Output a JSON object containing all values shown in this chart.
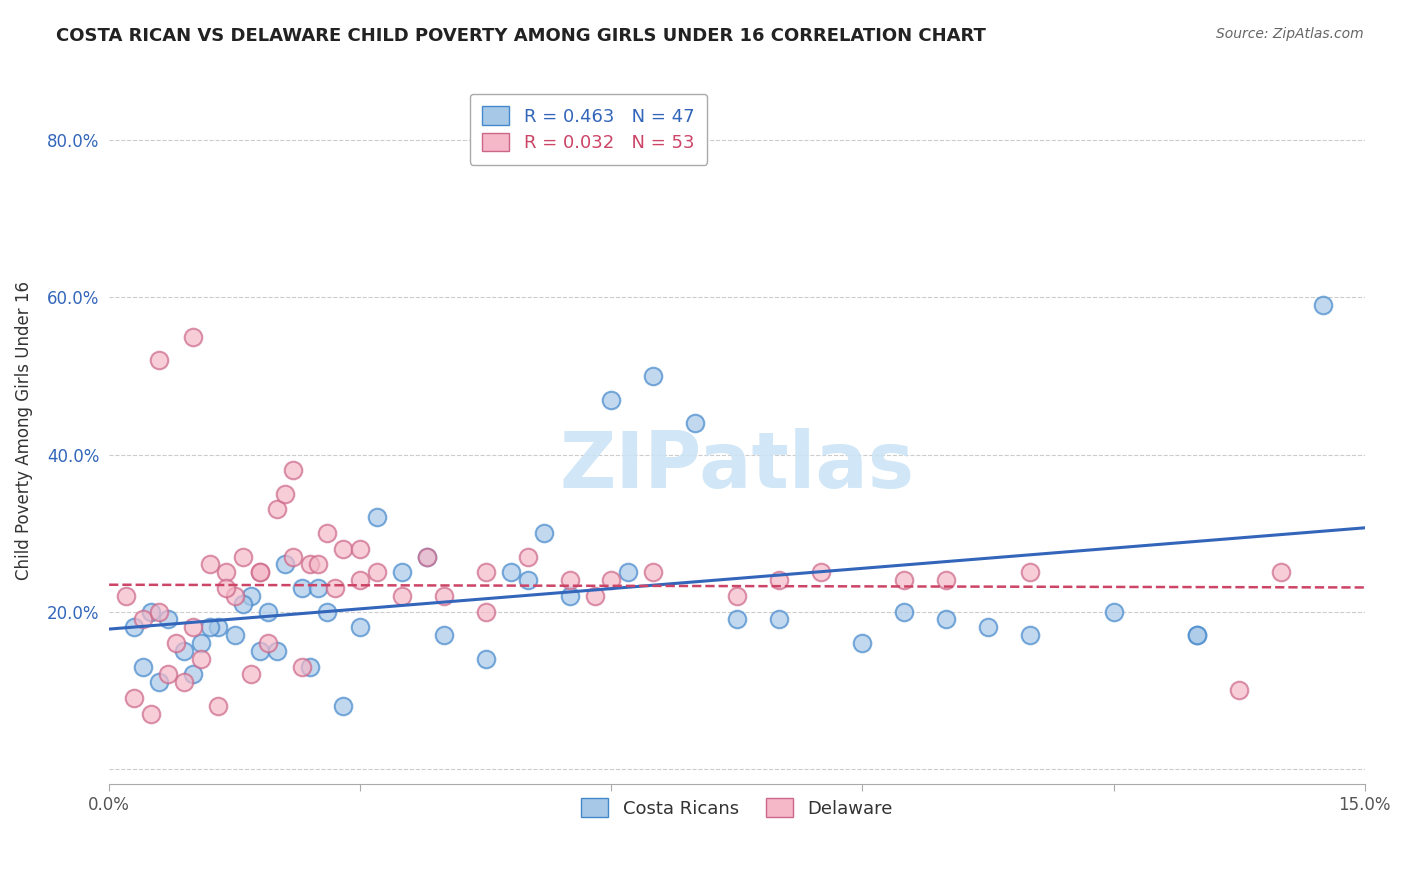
{
  "title": "COSTA RICAN VS DELAWARE CHILD POVERTY AMONG GIRLS UNDER 16 CORRELATION CHART",
  "source": "Source: ZipAtlas.com",
  "ylabel": "Child Poverty Among Girls Under 16",
  "watermark": "ZIPatlas",
  "xlim": [
    0.0,
    15.0
  ],
  "ylim": [
    -2.0,
    88.0
  ],
  "yticks": [
    0,
    20,
    40,
    60,
    80
  ],
  "ytick_labels": [
    "",
    "20.0%",
    "40.0%",
    "60.0%",
    "80.0%"
  ],
  "xticks": [
    0.0,
    3.0,
    6.0,
    9.0,
    12.0,
    15.0
  ],
  "xtick_labels": [
    "0.0%",
    "",
    "",
    "",
    "",
    "15.0%"
  ],
  "legend_blue_r": "R = 0.463",
  "legend_blue_n": "N = 47",
  "legend_pink_r": "R = 0.032",
  "legend_pink_n": "N = 53",
  "blue_color": "#a8c8e8",
  "pink_color": "#f4b8c8",
  "blue_edge_color": "#4488cc",
  "pink_edge_color": "#cc6688",
  "blue_line_color": "#3366bb",
  "pink_line_color": "#cc4466",
  "background_color": "#ffffff",
  "grid_color": "#cccccc",
  "blue_x": [
    0.3,
    0.5,
    0.7,
    0.9,
    1.1,
    1.3,
    1.5,
    1.7,
    1.9,
    2.1,
    2.3,
    2.6,
    3.0,
    3.5,
    4.0,
    4.5,
    5.0,
    5.5,
    6.0,
    6.5,
    7.0,
    8.0,
    9.0,
    10.0,
    11.0,
    13.0,
    14.5,
    0.4,
    0.6,
    1.0,
    1.2,
    1.6,
    1.8,
    2.0,
    2.4,
    2.8,
    3.2,
    4.8,
    6.2,
    9.5,
    13.0,
    2.5,
    3.8,
    5.2,
    7.5,
    10.5,
    12.0
  ],
  "blue_y": [
    18,
    20,
    19,
    15,
    16,
    18,
    17,
    22,
    20,
    26,
    23,
    20,
    18,
    25,
    17,
    14,
    24,
    22,
    47,
    50,
    44,
    19,
    16,
    19,
    17,
    17,
    59,
    13,
    11,
    12,
    18,
    21,
    15,
    15,
    13,
    8,
    32,
    25,
    25,
    20,
    17,
    23,
    27,
    30,
    19,
    18,
    20
  ],
  "pink_x": [
    0.2,
    0.4,
    0.6,
    0.8,
    1.0,
    1.2,
    1.4,
    1.6,
    1.8,
    2.0,
    2.2,
    2.4,
    2.6,
    2.8,
    3.0,
    3.2,
    3.5,
    4.0,
    4.5,
    5.0,
    5.5,
    6.0,
    6.5,
    7.5,
    8.5,
    9.5,
    11.0,
    13.5,
    14.0,
    0.3,
    0.5,
    0.7,
    0.9,
    1.1,
    1.3,
    1.5,
    1.7,
    1.9,
    2.1,
    2.3,
    2.5,
    2.7,
    3.0,
    3.8,
    4.5,
    5.8,
    0.6,
    1.0,
    1.4,
    1.8,
    2.2,
    10.0,
    8.0
  ],
  "pink_y": [
    22,
    19,
    20,
    16,
    18,
    26,
    25,
    27,
    25,
    33,
    27,
    26,
    30,
    28,
    24,
    25,
    22,
    22,
    20,
    27,
    24,
    24,
    25,
    22,
    25,
    24,
    25,
    10,
    25,
    9,
    7,
    12,
    11,
    14,
    8,
    22,
    12,
    16,
    35,
    13,
    26,
    23,
    28,
    27,
    25,
    22,
    52,
    55,
    23,
    25,
    38,
    24,
    24
  ]
}
